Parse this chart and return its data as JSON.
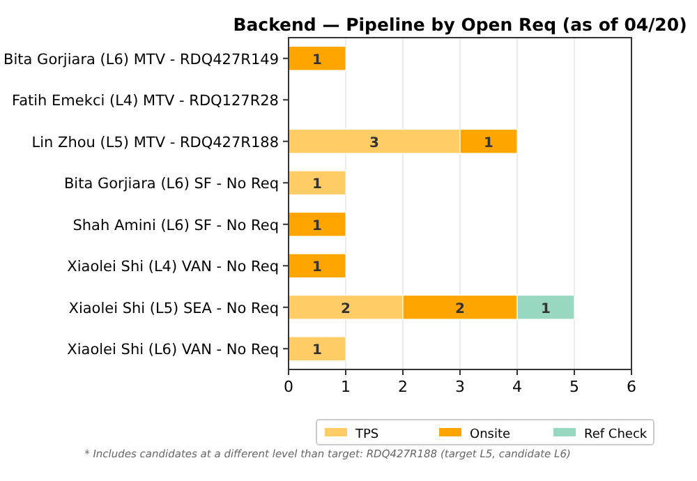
{
  "chart_data": {
    "type": "bar",
    "orientation": "horizontal",
    "stacked": true,
    "title": "Backend — Pipeline by Open Req (as of 04/20)",
    "categories": [
      "Bita Gorjiara (L6) MTV - RDQ427R149",
      "Fatih Emekci (L4) MTV - RDQ127R28",
      "Lin Zhou (L5) MTV - RDQ427R188",
      "Bita Gorjiara (L6) SF - No Req",
      "Shah Amini (L6) SF - No Req",
      "Xiaolei Shi (L4) VAN - No Req",
      "Xiaolei Shi (L5) SEA - No Req",
      "Xiaolei Shi (L6) VAN - No Req"
    ],
    "series": [
      {
        "name": "TPS",
        "color": "#ffcc66",
        "values": [
          null,
          null,
          3,
          1,
          null,
          null,
          2,
          1
        ]
      },
      {
        "name": "Onsite",
        "color": "#ffa500",
        "values": [
          1,
          null,
          1,
          null,
          1,
          1,
          2,
          null
        ]
      },
      {
        "name": "Ref Check",
        "color": "#99d8c0",
        "values": [
          null,
          null,
          null,
          null,
          null,
          null,
          1,
          null
        ]
      }
    ],
    "xlim": [
      0,
      6
    ],
    "xticks": [
      0,
      1,
      2,
      3,
      4,
      5,
      6
    ],
    "grid": "x",
    "legend": "bottom",
    "data_labels": true,
    "annotations": [
      "* Includes candidates at a different level than target: RDQ427R188 (target L5, candidate L6)"
    ]
  }
}
